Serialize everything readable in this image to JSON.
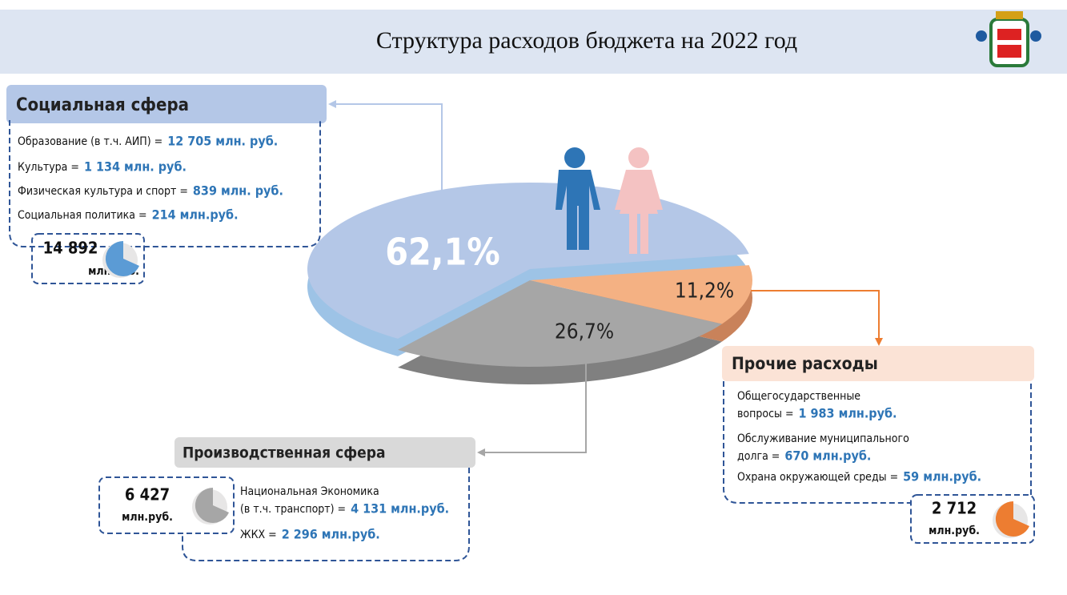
{
  "title": "Структура расходов бюджета на 2022 год",
  "chart_data": {
    "type": "pie",
    "values": [
      62.1,
      26.7,
      11.2
    ],
    "value_labels": [
      "62,1%",
      "26,7%",
      "11,2%"
    ],
    "colors": [
      "#b4c7e7",
      "#a6a6a6",
      "#f4b183"
    ]
  },
  "panels": [
    {
      "title": "Социальная сфера",
      "items": [
        {
          "label": [
            "Образование (в т.ч. АИП)  ="
          ],
          "value": "12 705 млн. руб."
        },
        {
          "label": [
            "Культура  ="
          ],
          "value": "1 134 млн. руб."
        },
        {
          "label": [
            "Физическая культура и спорт  ="
          ],
          "value": "839 млн. руб."
        },
        {
          "label": [
            "Социальная политика ="
          ],
          "value": "214 млн.руб."
        }
      ],
      "total": "14 892",
      "unit": "млн.руб."
    },
    {
      "title": "Производственная сфера",
      "items": [
        {
          "label": [
            "Национальная Экономика",
            "(в т.ч. транспорт) ="
          ],
          "value": "4 131 млн.руб."
        },
        {
          "label": [
            "ЖКХ  ="
          ],
          "value": "2 296 млн.руб."
        }
      ],
      "total": "6 427",
      "unit": "млн.руб."
    },
    {
      "title": "Прочие расходы",
      "items": [
        {
          "label": [
            "Общегосударственные",
            "вопросы  ="
          ],
          "value": "1 983 млн.руб."
        },
        {
          "label": [
            "Обслуживание муниципального",
            "долга  ="
          ],
          "value": "670 млн.руб."
        },
        {
          "label": [
            "Охрана окружающей среды ="
          ],
          "value": "59 млн.руб."
        }
      ],
      "total": "2 712",
      "unit": "млн.руб."
    }
  ]
}
